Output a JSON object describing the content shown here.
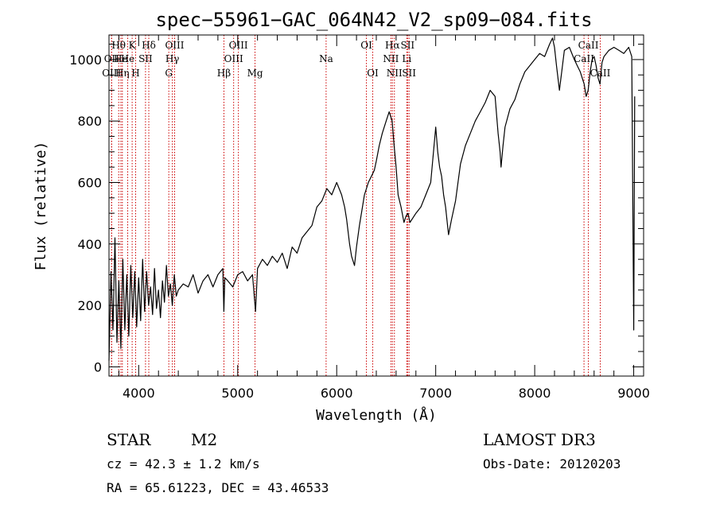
{
  "chart_data": {
    "type": "line",
    "title": "spec−55961−GAC_064N42_V2_sp09−084.fits",
    "xlabel": "Wavelength (Å)",
    "ylabel": "Flux (relative)",
    "xlim": [
      3700,
      9100
    ],
    "ylim": [
      -30,
      1080
    ],
    "xticks": [
      4000,
      5000,
      6000,
      7000,
      8000,
      9000
    ],
    "xtick_labels": [
      "4000",
      "5000",
      "6000",
      "7000",
      "8000",
      "9000"
    ],
    "yticks": [
      0,
      200,
      400,
      600,
      800,
      1000
    ],
    "ytick_labels": [
      "0",
      "200",
      "400",
      "600",
      "800",
      "1000"
    ],
    "series": [
      {
        "name": "spectrum",
        "x": [
          3700,
          3720,
          3740,
          3760,
          3780,
          3800,
          3820,
          3840,
          3860,
          3880,
          3900,
          3920,
          3940,
          3960,
          3980,
          4000,
          4020,
          4040,
          4060,
          4080,
          4100,
          4120,
          4140,
          4160,
          4180,
          4200,
          4220,
          4240,
          4260,
          4280,
          4300,
          4320,
          4340,
          4360,
          4380,
          4400,
          4450,
          4500,
          4550,
          4600,
          4650,
          4700,
          4750,
          4800,
          4850,
          4860,
          4870,
          4900,
          4950,
          5000,
          5050,
          5100,
          5150,
          5180,
          5200,
          5250,
          5300,
          5350,
          5400,
          5450,
          5500,
          5550,
          5600,
          5650,
          5700,
          5750,
          5800,
          5850,
          5900,
          5950,
          6000,
          6050,
          6080,
          6100,
          6130,
          6150,
          6180,
          6200,
          6230,
          6260,
          6280,
          6300,
          6320,
          6350,
          6380,
          6400,
          6430,
          6460,
          6500,
          6530,
          6560,
          6580,
          6600,
          6620,
          6650,
          6680,
          6700,
          6720,
          6740,
          6760,
          6800,
          6850,
          6900,
          6950,
          7000,
          7020,
          7040,
          7060,
          7080,
          7100,
          7130,
          7160,
          7200,
          7250,
          7300,
          7350,
          7400,
          7450,
          7500,
          7550,
          7600,
          7630,
          7650,
          7660,
          7680,
          7700,
          7750,
          7800,
          7850,
          7900,
          7950,
          8000,
          8050,
          8100,
          8150,
          8180,
          8200,
          8220,
          8250,
          8300,
          8350,
          8400,
          8430,
          8460,
          8500,
          8520,
          8540,
          8560,
          8580,
          8600,
          8620,
          8640,
          8660,
          8680,
          8700,
          8750,
          8800,
          8850,
          8900,
          8950,
          8980,
          9000,
          9010
        ],
        "y": [
          20,
          310,
          120,
          420,
          80,
          280,
          60,
          350,
          120,
          300,
          100,
          330,
          160,
          310,
          130,
          290,
          150,
          350,
          180,
          310,
          200,
          260,
          170,
          320,
          190,
          250,
          160,
          280,
          210,
          330,
          230,
          270,
          200,
          300,
          230,
          250,
          270,
          260,
          300,
          240,
          280,
          300,
          260,
          300,
          320,
          180,
          290,
          280,
          260,
          300,
          310,
          280,
          300,
          180,
          320,
          350,
          330,
          360,
          340,
          370,
          320,
          390,
          370,
          420,
          440,
          460,
          520,
          540,
          580,
          560,
          600,
          560,
          520,
          480,
          400,
          360,
          330,
          390,
          460,
          520,
          560,
          580,
          600,
          620,
          640,
          670,
          720,
          760,
          800,
          830,
          800,
          720,
          650,
          560,
          520,
          470,
          490,
          500,
          470,
          480,
          500,
          520,
          560,
          600,
          780,
          700,
          650,
          620,
          560,
          520,
          430,
          480,
          540,
          660,
          720,
          760,
          800,
          830,
          860,
          900,
          880,
          760,
          700,
          650,
          720,
          780,
          840,
          870,
          920,
          960,
          980,
          1000,
          1020,
          1010,
          1050,
          1070,
          1040,
          980,
          900,
          1030,
          1040,
          1000,
          980,
          960,
          920,
          880,
          900,
          960,
          1000,
          1010,
          980,
          940,
          920,
          990,
          1010,
          1030,
          1040,
          1030,
          1020,
          1040,
          1010,
          120,
          880
        ]
      }
    ],
    "line_markers": [
      {
        "label": "Hθ",
        "wavelength": 3798,
        "row": 1
      },
      {
        "label": "OII",
        "wavelength": 3727,
        "row": 2
      },
      {
        "label": "OIII",
        "wavelength": 3726,
        "row": 3
      },
      {
        "label": "He",
        "wavelength": 3820,
        "row": 2
      },
      {
        "label": "Hη",
        "wavelength": 3835,
        "row": 3
      },
      {
        "label": "K",
        "wavelength": 3934,
        "row": 1
      },
      {
        "label": "He",
        "wavelength": 3889,
        "row": 2
      },
      {
        "label": "H",
        "wavelength": 3969,
        "row": 3
      },
      {
        "label": "SII",
        "wavelength": 4069,
        "row": 2
      },
      {
        "label": "Hδ",
        "wavelength": 4102,
        "row": 1
      },
      {
        "label": "OIII",
        "wavelength": 4363,
        "row": 1
      },
      {
        "label": "Hγ",
        "wavelength": 4340,
        "row": 2
      },
      {
        "label": "G",
        "wavelength": 4304,
        "row": 3
      },
      {
        "label": "Hβ",
        "wavelength": 4861,
        "row": 3
      },
      {
        "label": "OIII",
        "wavelength": 5007,
        "row": 1
      },
      {
        "label": "OIII",
        "wavelength": 4959,
        "row": 2
      },
      {
        "label": "Mg",
        "wavelength": 5175,
        "row": 3
      },
      {
        "label": "Na",
        "wavelength": 5893,
        "row": 2
      },
      {
        "label": "OI",
        "wavelength": 6300,
        "row": 1
      },
      {
        "label": "OI",
        "wavelength": 6364,
        "row": 3
      },
      {
        "label": "Hα",
        "wavelength": 6563,
        "row": 1
      },
      {
        "label": "NII",
        "wavelength": 6548,
        "row": 2
      },
      {
        "label": "NII",
        "wavelength": 6583,
        "row": 3
      },
      {
        "label": "SII",
        "wavelength": 6716,
        "row": 1
      },
      {
        "label": "Li",
        "wavelength": 6708,
        "row": 2
      },
      {
        "label": "SII",
        "wavelength": 6731,
        "row": 3
      },
      {
        "label": "CaII",
        "wavelength": 8542,
        "row": 1
      },
      {
        "label": "CaII",
        "wavelength": 8498,
        "row": 2
      },
      {
        "label": "CaII",
        "wavelength": 8662,
        "row": 3
      }
    ],
    "marker_color": "#cc0000",
    "line_color": "#000000"
  },
  "footer": {
    "object_type": "STAR",
    "subclass": "M2",
    "survey": "LAMOST DR3",
    "redshift": "cz = 42.3 ± 1.2 km/s",
    "obs_date": "Obs-Date: 20120203",
    "coords": "RA =  65.61223, DEC =  43.46533"
  }
}
